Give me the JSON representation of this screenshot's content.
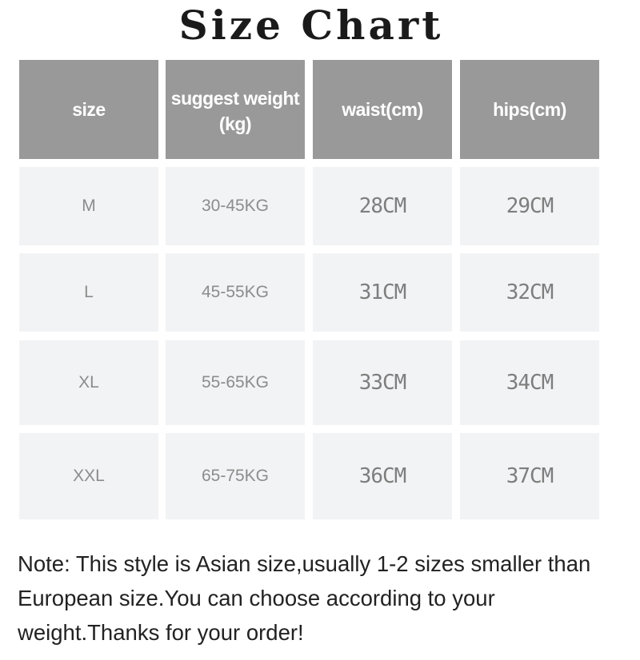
{
  "title": "Size Chart",
  "table": {
    "headers": [
      "size",
      "suggest weight (kg)",
      "waist(cm)",
      "hips(cm)"
    ],
    "rows": [
      [
        "M",
        "30-45KG",
        "28CM",
        "29CM"
      ],
      [
        "L",
        "45-55KG",
        "31CM",
        "32CM"
      ],
      [
        "XL",
        "55-65KG",
        "33CM",
        "34CM"
      ],
      [
        "XXL",
        "65-75KG",
        "36CM",
        "37CM"
      ]
    ]
  },
  "note": "Note: This style is Asian size,usually 1-2 sizes smaller than European size.You can choose according to your weight.Thanks for your order!",
  "colors": {
    "header_bg": "#999999",
    "cell_bg": "#f2f3f4",
    "cell_text": "#8c8c8c"
  }
}
